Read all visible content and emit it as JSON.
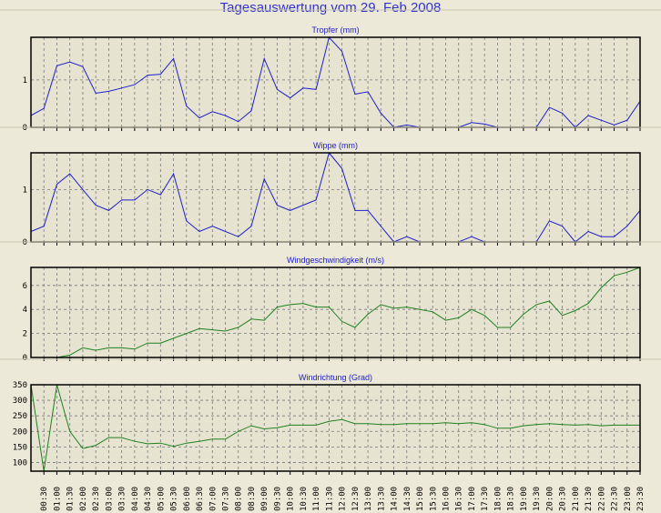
{
  "title": "Tagesauswertung vom 29. Feb 2008",
  "chart_data": {
    "type": "line",
    "x": [
      "00:00",
      "00:30",
      "01:00",
      "01:30",
      "02:00",
      "02:30",
      "03:00",
      "03:30",
      "04:00",
      "04:30",
      "05:00",
      "05:30",
      "06:00",
      "06:30",
      "07:00",
      "07:30",
      "08:00",
      "08:30",
      "09:00",
      "09:30",
      "10:00",
      "10:30",
      "11:00",
      "11:30",
      "12:00",
      "12:30",
      "13:00",
      "13:30",
      "14:00",
      "14:30",
      "15:00",
      "15:30",
      "16:00",
      "16:30",
      "17:00",
      "17:30",
      "18:00",
      "18:30",
      "19:00",
      "19:30",
      "20:00",
      "20:30",
      "21:00",
      "21:30",
      "22:00",
      "22:30",
      "23:00",
      "23:30"
    ],
    "panels": [
      {
        "title": "Tropfer (mm)",
        "color": "#2020cc",
        "ylim": [
          0,
          1.9
        ],
        "yticks": [
          0,
          1
        ],
        "values": [
          0.25,
          0.4,
          1.3,
          1.38,
          1.28,
          0.72,
          0.76,
          0.83,
          0.9,
          1.1,
          1.12,
          1.45,
          0.45,
          0.2,
          0.33,
          0.25,
          0.12,
          0.35,
          1.45,
          0.8,
          0.62,
          0.83,
          0.8,
          1.9,
          1.6,
          0.7,
          0.75,
          0.3,
          0,
          0.05,
          0,
          0,
          0,
          0,
          0.1,
          0.07,
          0,
          0,
          0,
          0,
          0.42,
          0.3,
          0,
          0.25,
          0.15,
          0.05,
          0.15,
          0.55
        ]
      },
      {
        "title": "Wippe (mm)",
        "color": "#2020cc",
        "ylim": [
          0,
          1.7
        ],
        "yticks": [
          0,
          1
        ],
        "values": [
          0.2,
          0.3,
          1.1,
          1.3,
          1.0,
          0.7,
          0.6,
          0.8,
          0.8,
          1.0,
          0.9,
          1.3,
          0.4,
          0.2,
          0.3,
          0.2,
          0.1,
          0.3,
          1.2,
          0.7,
          0.6,
          0.7,
          0.8,
          1.7,
          1.4,
          0.6,
          0.6,
          0.3,
          0,
          0.1,
          0,
          0,
          0,
          0,
          0.1,
          0,
          0,
          0,
          0,
          0,
          0.4,
          0.3,
          0,
          0.2,
          0.1,
          0.1,
          0.3,
          0.6
        ]
      },
      {
        "title": "Windgeschwindigkeit (m/s)",
        "color": "#208020",
        "ylim": [
          0,
          7.5
        ],
        "yticks": [
          0,
          2,
          4,
          6
        ],
        "values": [
          0,
          0,
          0,
          0.2,
          0.8,
          0.6,
          0.8,
          0.8,
          0.7,
          1.2,
          1.2,
          1.6,
          2.0,
          2.4,
          2.3,
          2.2,
          2.5,
          3.2,
          3.1,
          4.2,
          4.4,
          4.5,
          4.2,
          4.2,
          3.0,
          2.5,
          3.6,
          4.4,
          4.1,
          4.2,
          4.0,
          3.8,
          3.1,
          3.3,
          4.0,
          3.5,
          2.5,
          2.5,
          3.6,
          4.4,
          4.7,
          3.5,
          3.9,
          4.5,
          5.8,
          6.8,
          7.1,
          7.6
        ]
      },
      {
        "title": "Windrichtung (Grad)",
        "color": "#208020",
        "ylim": [
          72,
          350
        ],
        "yticks": [
          100,
          150,
          200,
          250,
          300,
          350
        ],
        "values": [
          350,
          70,
          350,
          200,
          145,
          155,
          180,
          180,
          168,
          160,
          162,
          152,
          162,
          168,
          175,
          175,
          200,
          218,
          208,
          212,
          220,
          220,
          220,
          232,
          238,
          225,
          225,
          222,
          222,
          225,
          225,
          225,
          228,
          225,
          228,
          222,
          210,
          210,
          218,
          222,
          225,
          222,
          220,
          222,
          218,
          220,
          220,
          220
        ]
      }
    ]
  }
}
